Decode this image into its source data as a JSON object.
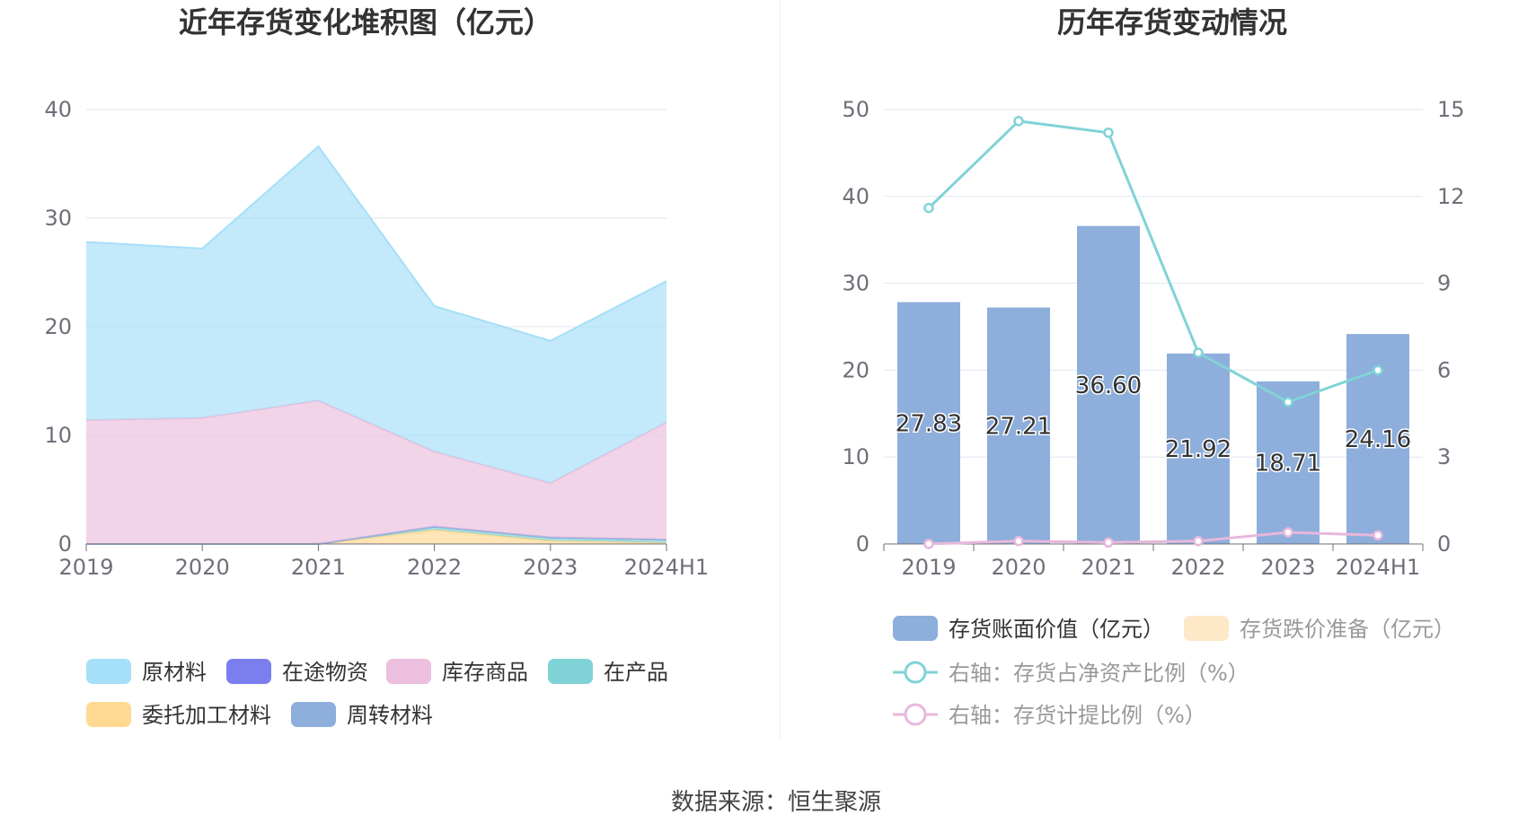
{
  "charts": {
    "left_title": "近年存货变化堆积图（亿元）",
    "right_title": "历年存货变动情况",
    "source": "数据来源：恒生聚源"
  },
  "chart_data": [
    {
      "type": "area",
      "stacked": true,
      "title": "近年存货变化堆积图（亿元）",
      "categories": [
        "2019",
        "2020",
        "2021",
        "2022",
        "2023",
        "2024H1"
      ],
      "ylim": [
        0,
        40
      ],
      "yticks": [
        "0",
        "10",
        "20",
        "30",
        "40"
      ],
      "grid": true,
      "legend_position": "bottom",
      "series": [
        {
          "name": "委托加工材料",
          "color": "#ffd992",
          "values": [
            0,
            0,
            0,
            1.3,
            0.3,
            0.1
          ]
        },
        {
          "name": "在产品",
          "color": "#7fd3d6",
          "values": [
            0,
            0,
            0,
            0.3,
            0.3,
            0.3
          ]
        },
        {
          "name": "在途物资",
          "color": "#7b7fee",
          "values": [
            0,
            0,
            0,
            0,
            0,
            0
          ]
        },
        {
          "name": "周转材料",
          "color": "#8eaedc",
          "values": [
            0,
            0,
            0,
            0,
            0,
            0
          ]
        },
        {
          "name": "库存商品",
          "color": "#ebbfdd",
          "values": [
            11.4,
            11.6,
            13.2,
            6.9,
            5.0,
            10.8
          ]
        },
        {
          "name": "原材料",
          "color": "#a6dff8",
          "values": [
            16.4,
            15.6,
            23.4,
            13.4,
            13.1,
            13.0
          ]
        }
      ],
      "legend_order": [
        "原材料",
        "在途物资",
        "库存商品",
        "在产品",
        "委托加工材料",
        "周转材料"
      ]
    },
    {
      "type": "bar",
      "title": "历年存货变动情况",
      "categories": [
        "2019",
        "2020",
        "2021",
        "2022",
        "2023",
        "2024H1"
      ],
      "ylim": [
        0,
        50
      ],
      "yticks": [
        "0",
        "10",
        "20",
        "30",
        "40",
        "50"
      ],
      "y2lim": [
        0,
        15
      ],
      "y2ticks": [
        "0",
        "3",
        "6",
        "9",
        "12",
        "15"
      ],
      "grid": true,
      "legend_position": "bottom",
      "series": [
        {
          "name": "存货账面价值（亿元）",
          "type": "bar",
          "axis": "left",
          "color": "#8eaedc",
          "values": [
            27.83,
            27.21,
            36.6,
            21.92,
            18.71,
            24.16
          ],
          "labels": [
            "27.83",
            "27.21",
            "36.60",
            "21.92",
            "18.71",
            "24.16"
          ]
        },
        {
          "name": "存货跌价准备（亿元）",
          "type": "bar",
          "axis": "left",
          "color": "#fde8c8",
          "values": [
            0,
            0,
            0,
            0,
            0,
            0
          ]
        },
        {
          "name": "右轴：存货占净资产比例（%）",
          "type": "line",
          "axis": "right",
          "color": "#80d3d6",
          "values": [
            11.6,
            14.6,
            14.2,
            6.6,
            4.9,
            6.0
          ]
        },
        {
          "name": "右轴：存货计提比例（%）",
          "type": "line",
          "axis": "right",
          "color": "#e8b8dc",
          "values": [
            0.0,
            0.1,
            0.05,
            0.1,
            0.4,
            0.3
          ]
        }
      ]
    }
  ]
}
